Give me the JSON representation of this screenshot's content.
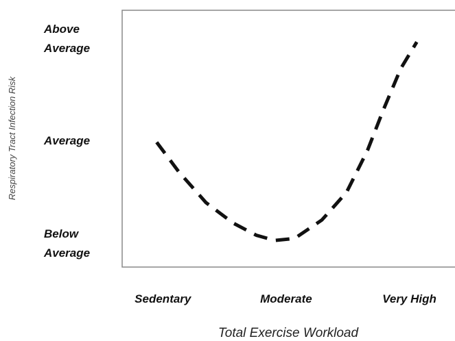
{
  "chart_data": {
    "type": "line",
    "x_label": "Total Exercise Workload",
    "y_label": "Respiratory Tract Infection Risk",
    "xlim": [
      -0.33,
      2.37
    ],
    "xticks": [
      {
        "value": 0,
        "label": "Sedentary"
      },
      {
        "value": 1,
        "label": "Moderate"
      },
      {
        "value": 2,
        "label": "Very High"
      }
    ],
    "ylim": [
      -0.23,
      2.28
    ],
    "yticks": [
      {
        "value": 0,
        "label": "Below Average"
      },
      {
        "value": 1,
        "label": "Average"
      },
      {
        "value": 2,
        "label": "Above Average"
      }
    ],
    "grid": false,
    "series": [
      {
        "color": "#111111",
        "dashed": true,
        "x": [
          -0.05,
          0.13,
          0.35,
          0.57,
          0.76,
          0.91,
          1.07,
          1.29,
          1.49,
          1.66,
          1.79,
          1.93,
          2.06
        ],
        "values": [
          0.99,
          0.7,
          0.4,
          0.2,
          0.08,
          0.03,
          0.05,
          0.23,
          0.5,
          0.91,
          1.31,
          1.71,
          1.97
        ]
      }
    ]
  }
}
